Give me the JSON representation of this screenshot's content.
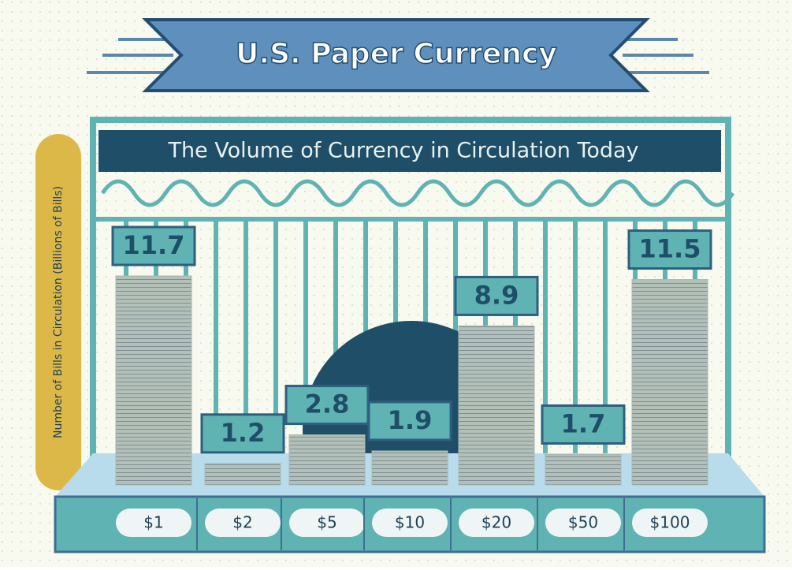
{
  "chart_data": {
    "type": "bar",
    "title": "U.S. Paper Currency",
    "subtitle": "The Volume of Currency in Circulation Today",
    "y_label": "Number of Bills in Circulation (Billions of Bills)",
    "categories": [
      "$1",
      "$2",
      "$5",
      "$10",
      "$20",
      "$50",
      "$100"
    ],
    "values": [
      11.7,
      1.2,
      2.8,
      1.9,
      8.9,
      1.7,
      11.5
    ],
    "color": "#a9b8b0"
  }
}
